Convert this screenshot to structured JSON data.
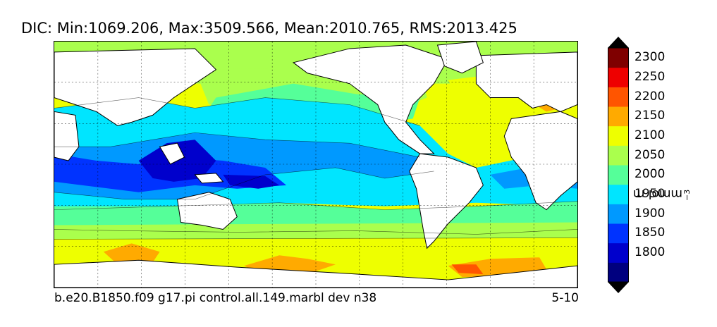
{
  "title": "DIC: Min:1069.206, Max:3509.566, Mean:2010.765, RMS:2013.425",
  "footer": {
    "case_name": "b.e20.B1850.f09 g17.pi control.all.149.marbl dev n38",
    "period": "5-10"
  },
  "colorbar": {
    "unit_base": "mmol m",
    "unit_exponent": "−3",
    "ticks": [
      "1800",
      "1850",
      "1900",
      "1950",
      "2000",
      "2050",
      "2100",
      "2150",
      "2200",
      "2250",
      "2300"
    ],
    "levels": [
      1800,
      1850,
      1900,
      1950,
      2000,
      2050,
      2100,
      2150,
      2200,
      2250,
      2300
    ],
    "colors": {
      "under": "#00007f",
      "bins": [
        "#0000cc",
        "#0033ff",
        "#0099ff",
        "#00e5ff",
        "#55ff99",
        "#aaff4d",
        "#eeff00",
        "#ffaa00",
        "#ff5500",
        "#ee0000",
        "#7f0000"
      ]
    },
    "extend": "both"
  },
  "map": {
    "projection": "global lat-lon",
    "gridlines": true,
    "land_color": "#ffffff"
  }
}
